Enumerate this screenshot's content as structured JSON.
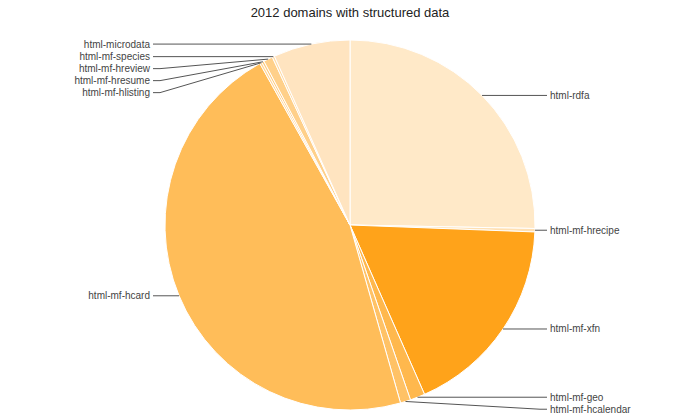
{
  "chart_data": {
    "type": "pie",
    "title": "2012 domains with structured data",
    "categories": [
      "html-rdfa",
      "html-mf-hrecipe",
      "html-mf-xfn",
      "html-mf-geo",
      "html-mf-hcalendar",
      "html-mf-hcard",
      "html-mf-hlisting",
      "html-mf-hresume",
      "html-mf-hreview",
      "html-mf-species",
      "html-microdata"
    ],
    "values": [
      25.3,
      0.3,
      17.8,
      1.3,
      0.9,
      46.3,
      0.2,
      0.2,
      0.8,
      0.2,
      6.7
    ],
    "colors": [
      "#ffe9c8",
      "#ffe0b3",
      "#ffa31a",
      "#ffb84d",
      "#ffc266",
      "#ffbd59",
      "#ffd699",
      "#ffcc80",
      "#ffd08a",
      "#ffdca8",
      "#ffe4c0"
    ]
  }
}
